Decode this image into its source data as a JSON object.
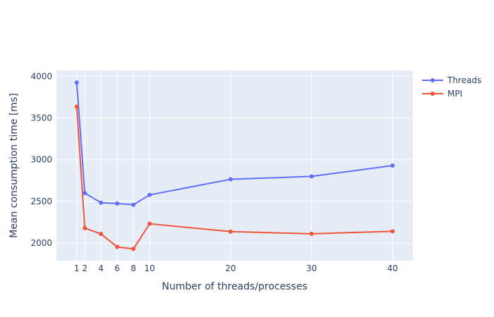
{
  "chart_data": {
    "type": "line",
    "title": "",
    "xlabel": "Number of threads/processes",
    "ylabel": "Mean consumption time [ms]",
    "xlim": [
      -1.5,
      42.5
    ],
    "ylim": [
      1790,
      4070
    ],
    "x_ticks": [
      1,
      2,
      4,
      6,
      8,
      10,
      20,
      30,
      40
    ],
    "y_ticks": [
      2000,
      2500,
      3000,
      3500,
      4000
    ],
    "grid": true,
    "legend_position": "top-right",
    "x": [
      1,
      2,
      4,
      6,
      8,
      10,
      20,
      30,
      40
    ],
    "series": [
      {
        "name": "Threads",
        "color": "#636efa",
        "values": [
          3925,
          2600,
          2485,
          2475,
          2460,
          2578,
          2765,
          2800,
          2930
        ]
      },
      {
        "name": "MPI",
        "color": "#ef553b",
        "values": [
          3635,
          2180,
          2110,
          1955,
          1930,
          2232,
          2138,
          2112,
          2142
        ]
      }
    ]
  }
}
